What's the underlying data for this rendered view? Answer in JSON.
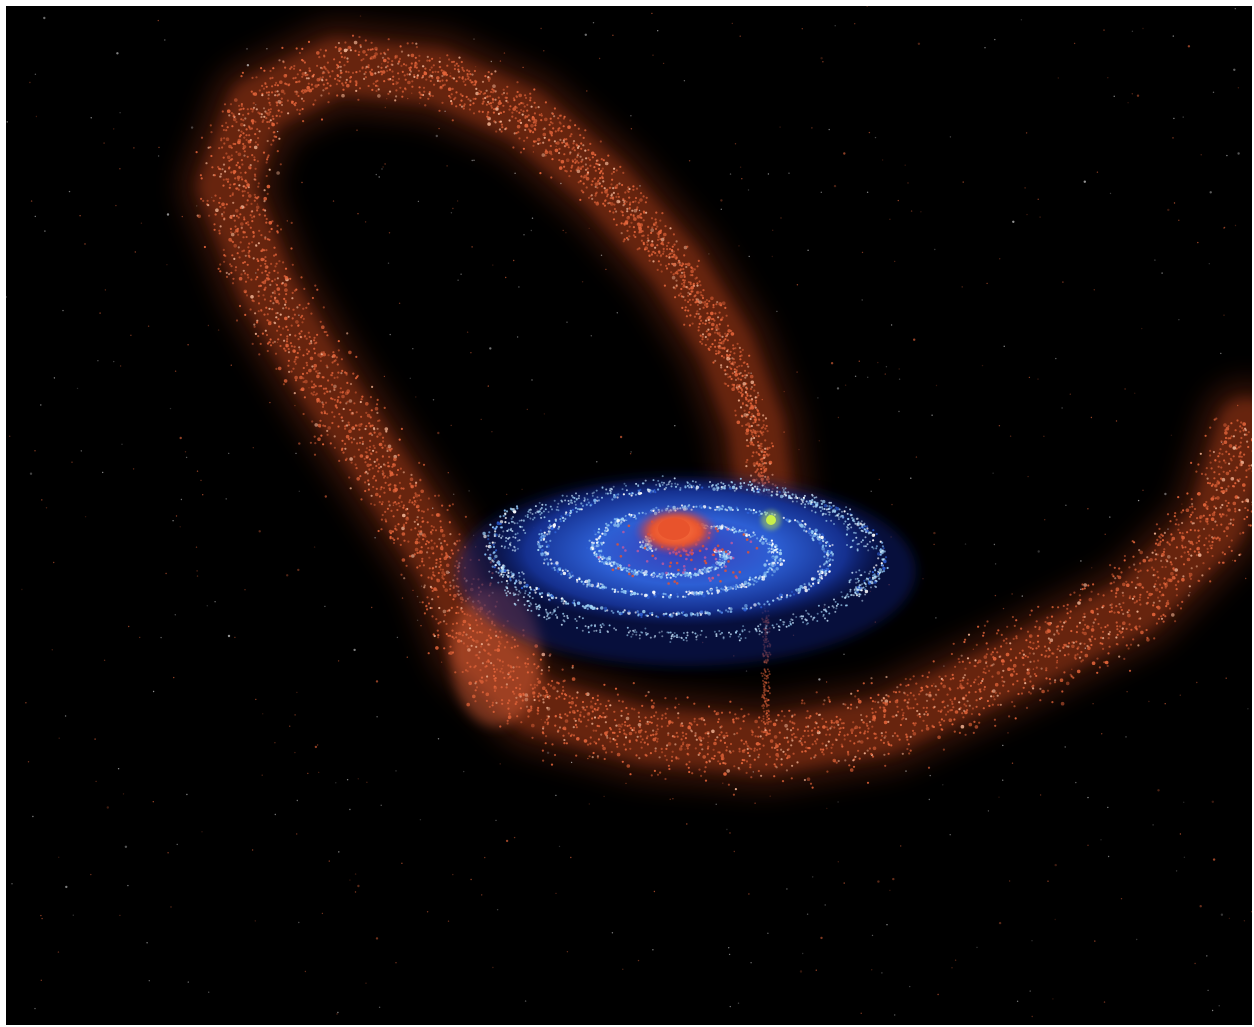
{
  "image": {
    "subject": "galaxy-simulation",
    "colors": {
      "background": "#000000",
      "frame": "#ffffff",
      "tidal_stream": "#c2441f",
      "tidal_stream_bright": "#e2643a",
      "disk_dark": "#0b1f6e",
      "disk_mid": "#2d5fd4",
      "disk_arm": "#9fd2f5",
      "bulge": "#e8532c",
      "satellite": "#c8f04a"
    },
    "elements": [
      "tidal-stream",
      "spiral-disk",
      "galactic-bulge",
      "satellite-galaxy",
      "background-stars"
    ]
  }
}
